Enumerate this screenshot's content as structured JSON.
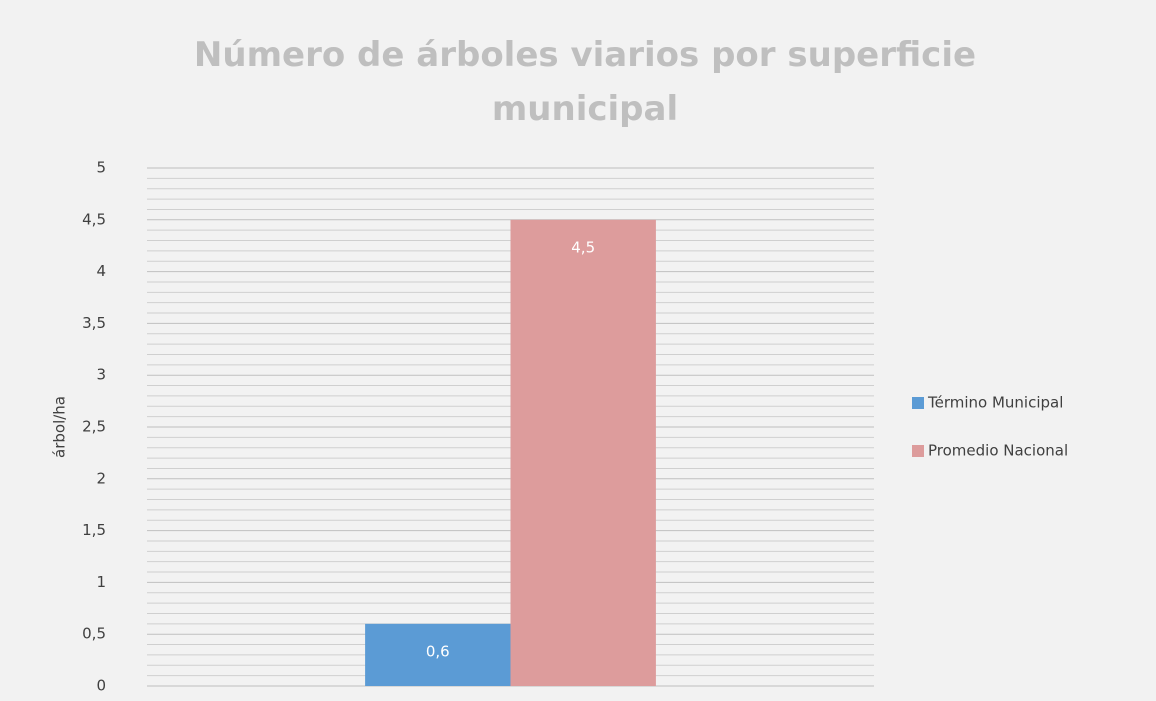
{
  "chart_data": {
    "type": "bar",
    "title": "Número de árboles viarios por superficie municipal",
    "title_lines": [
      "Número de árboles viarios por superficie",
      "municipal"
    ],
    "y_label": "árbol/ha",
    "categories": [
      null
    ],
    "series": [
      {
        "name": "Término Municipal",
        "color": "#5b9bd5",
        "values": [
          0.6
        ],
        "value_labels": [
          "0,6"
        ]
      },
      {
        "name": "Promedio Nacional",
        "color": "#dd9c9c",
        "values": [
          4.5
        ],
        "value_labels": [
          "4,5"
        ]
      }
    ],
    "ylim": [
      0,
      5
    ],
    "yticks": [
      0,
      {
        "value": 0.5,
        "label": "0,5"
      },
      1,
      {
        "value": 1.5,
        "label": "1,5"
      },
      2,
      {
        "value": 2.5,
        "label": "2,5"
      },
      3,
      {
        "value": 3.5,
        "label": "3,5"
      },
      4,
      {
        "value": 4.5,
        "label": "4,5"
      },
      5
    ],
    "minor_yticks": [
      0.1,
      0.2,
      0.3,
      0.4,
      0.6,
      0.7,
      0.8,
      0.9,
      1.1,
      1.2,
      1.3,
      1.4,
      1.6,
      1.7,
      1.8,
      1.9,
      2.1,
      2.2,
      2.3,
      2.4,
      2.6,
      2.7,
      2.8,
      2.9,
      3.1,
      3.2,
      3.3,
      3.4,
      3.6,
      3.7,
      3.8,
      3.9,
      4.1,
      4.2,
      4.3,
      4.4,
      4.6,
      4.7,
      4.8,
      4.9
    ],
    "grid": true,
    "legend": "right"
  }
}
